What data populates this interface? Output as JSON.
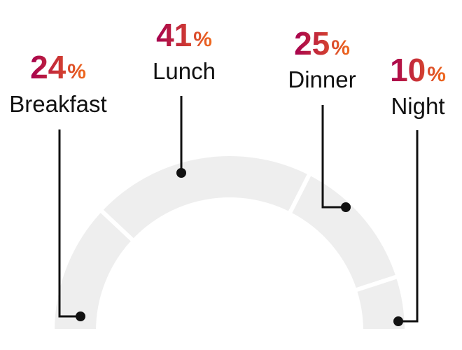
{
  "chart_data": {
    "type": "pie",
    "style": "semicircle-donut",
    "categories": [
      "Breakfast",
      "Lunch",
      "Dinner",
      "Night"
    ],
    "values": [
      24,
      41,
      25,
      10
    ],
    "percent_suffix": "%",
    "title": "",
    "colors": {
      "segment_fill": "#eeeeee",
      "separator": "#ffffff",
      "leader_line": "#111111",
      "gradient_start": "#a6004f",
      "gradient_end": "#f06a1c",
      "label_text": "#111111"
    }
  }
}
